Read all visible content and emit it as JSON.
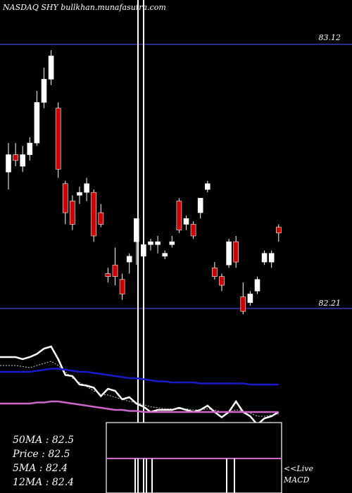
{
  "header": {
    "title": "NASDAQ SHY bullkhan.munafasutra.com"
  },
  "price_levels": [
    {
      "label": "83.12",
      "value": 83.12
    },
    {
      "label": "82.21",
      "value": 82.21
    }
  ],
  "stats": [
    {
      "label": "50MA : 82.5"
    },
    {
      "label": "Price   : 82.5"
    },
    {
      "label": "5MA : 82.4"
    },
    {
      "label": "12MA : 82.4"
    }
  ],
  "indicator_label": {
    "line1": "<<Live",
    "line2": "MACD"
  },
  "colors": {
    "background": "#000000",
    "up_candle": "#ffffff",
    "down_candle": "#cc0000",
    "guide_line": "#1a1a6e",
    "ma_fast": "#ffffff",
    "ma_mid": "#1a1acc",
    "ma_slow": "#cc66cc",
    "macd_line": "#cc66cc"
  },
  "chart_data": {
    "type": "candlestick",
    "title": "NASDAQ SHY bullkhan.munafasutra.com",
    "ylim": [
      82.0,
      83.3
    ],
    "reference_lines": [
      83.12,
      82.21
    ],
    "candles": [
      {
        "open": 82.68,
        "high": 82.78,
        "low": 82.62,
        "close": 82.74
      },
      {
        "open": 82.74,
        "high": 82.78,
        "low": 82.7,
        "close": 82.72
      },
      {
        "open": 82.7,
        "high": 82.77,
        "low": 82.68,
        "close": 82.74
      },
      {
        "open": 82.74,
        "high": 82.8,
        "low": 82.72,
        "close": 82.78
      },
      {
        "open": 82.78,
        "high": 82.96,
        "low": 82.77,
        "close": 82.92
      },
      {
        "open": 82.92,
        "high": 83.04,
        "low": 82.9,
        "close": 83.0
      },
      {
        "open": 83.0,
        "high": 83.1,
        "low": 82.98,
        "close": 83.08
      },
      {
        "open": 82.9,
        "high": 82.92,
        "low": 82.66,
        "close": 82.69
      },
      {
        "open": 82.64,
        "high": 82.65,
        "low": 82.5,
        "close": 82.54
      },
      {
        "open": 82.58,
        "high": 82.6,
        "low": 82.48,
        "close": 82.5
      },
      {
        "open": 82.6,
        "high": 82.63,
        "low": 82.57,
        "close": 82.61
      },
      {
        "open": 82.61,
        "high": 82.66,
        "low": 82.58,
        "close": 82.64
      },
      {
        "open": 82.61,
        "high": 82.62,
        "low": 82.44,
        "close": 82.46
      },
      {
        "open": 82.54,
        "high": 82.57,
        "low": 82.49,
        "close": 82.5
      },
      {
        "open": 82.33,
        "high": 82.35,
        "low": 82.3,
        "close": 82.32
      },
      {
        "open": 82.36,
        "high": 82.42,
        "low": 82.29,
        "close": 82.32
      },
      {
        "open": 82.31,
        "high": 82.33,
        "low": 82.24,
        "close": 82.26
      },
      {
        "open": 82.37,
        "high": 82.4,
        "low": 82.33,
        "close": 82.39
      },
      {
        "open": 82.44,
        "high": 82.52,
        "low": 82.36,
        "close": 82.52
      },
      {
        "open": 82.39,
        "high": 82.45,
        "low": 82.38,
        "close": 82.43
      },
      {
        "open": 82.43,
        "high": 82.45,
        "low": 82.41,
        "close": 82.44
      },
      {
        "open": 82.43,
        "high": 82.46,
        "low": 82.4,
        "close": 82.44
      },
      {
        "open": 82.39,
        "high": 82.41,
        "low": 82.38,
        "close": 82.4
      },
      {
        "open": 82.43,
        "high": 82.46,
        "low": 82.42,
        "close": 82.44
      },
      {
        "open": 82.58,
        "high": 82.59,
        "low": 82.47,
        "close": 82.48
      },
      {
        "open": 82.5,
        "high": 82.53,
        "low": 82.48,
        "close": 82.52
      },
      {
        "open": 82.5,
        "high": 82.51,
        "low": 82.45,
        "close": 82.46
      },
      {
        "open": 82.54,
        "high": 82.59,
        "low": 82.52,
        "close": 82.59
      },
      {
        "open": 82.62,
        "high": 82.65,
        "low": 82.61,
        "close": 82.64
      },
      {
        "open": 82.35,
        "high": 82.37,
        "low": 82.31,
        "close": 82.32
      },
      {
        "open": 82.32,
        "high": 82.33,
        "low": 82.27,
        "close": 82.29
      },
      {
        "open": 82.36,
        "high": 82.45,
        "low": 82.35,
        "close": 82.44
      },
      {
        "open": 82.44,
        "high": 82.46,
        "low": 82.35,
        "close": 82.37
      },
      {
        "open": 82.25,
        "high": 82.3,
        "low": 82.19,
        "close": 82.2
      },
      {
        "open": 82.23,
        "high": 82.27,
        "low": 82.22,
        "close": 82.26
      },
      {
        "open": 82.27,
        "high": 82.32,
        "low": 82.26,
        "close": 82.31
      },
      {
        "open": 82.37,
        "high": 82.41,
        "low": 82.36,
        "close": 82.4
      },
      {
        "open": 82.37,
        "high": 82.41,
        "low": 82.35,
        "close": 82.4
      },
      {
        "open": 82.49,
        "high": 82.5,
        "low": 82.44,
        "close": 82.47
      }
    ],
    "series": [
      {
        "values": [
          0.62,
          0.62,
          0.6,
          0.62,
          0.65,
          0.7,
          0.72,
          0.6,
          0.45,
          0.44,
          0.36,
          0.35,
          0.33,
          0.25,
          0.32,
          0.3,
          0.22,
          0.24,
          0.18,
          0.15,
          0.1,
          0.12,
          0.12,
          0.12,
          0.14,
          0.12,
          0.1,
          0.12,
          0.16,
          0.1,
          0.05,
          0.1,
          0.2,
          0.1,
          0.06,
          -0.02,
          0.04,
          0.06,
          0.1
        ]
      },
      {
        "values": [
          0.54,
          0.54,
          0.53,
          0.52,
          0.54,
          0.56,
          0.58,
          0.54,
          0.48,
          0.42,
          0.38,
          0.34,
          0.3,
          0.27,
          0.26,
          0.24,
          0.22,
          0.2,
          0.19,
          0.17,
          0.15,
          0.14,
          0.13,
          0.13,
          0.13,
          0.13,
          0.12,
          0.12,
          0.13,
          0.12,
          0.1,
          0.1,
          0.12,
          0.11,
          0.09,
          0.06,
          0.06,
          0.07,
          0.08
        ]
      },
      {
        "values": [
          0.48,
          0.48,
          0.48,
          0.48,
          0.49,
          0.5,
          0.51,
          0.51,
          0.5,
          0.49,
          0.48,
          0.48,
          0.47,
          0.46,
          0.45,
          0.44,
          0.43,
          0.42,
          0.42,
          0.41,
          0.4,
          0.39,
          0.39,
          0.38,
          0.38,
          0.38,
          0.38,
          0.37,
          0.37,
          0.37,
          0.37,
          0.37,
          0.37,
          0.37,
          0.36,
          0.36,
          0.36,
          0.36,
          0.36
        ]
      },
      {
        "values": [
          0.18,
          0.18,
          0.18,
          0.18,
          0.19,
          0.19,
          0.2,
          0.2,
          0.19,
          0.18,
          0.17,
          0.16,
          0.15,
          0.14,
          0.13,
          0.12,
          0.12,
          0.11,
          0.11,
          0.1,
          0.1,
          0.1,
          0.1,
          0.1,
          0.1,
          0.1,
          0.1,
          0.1,
          0.1,
          0.1,
          0.1,
          0.1,
          0.1,
          0.1,
          0.1,
          0.1,
          0.1,
          0.1,
          0.1
        ]
      }
    ]
  }
}
